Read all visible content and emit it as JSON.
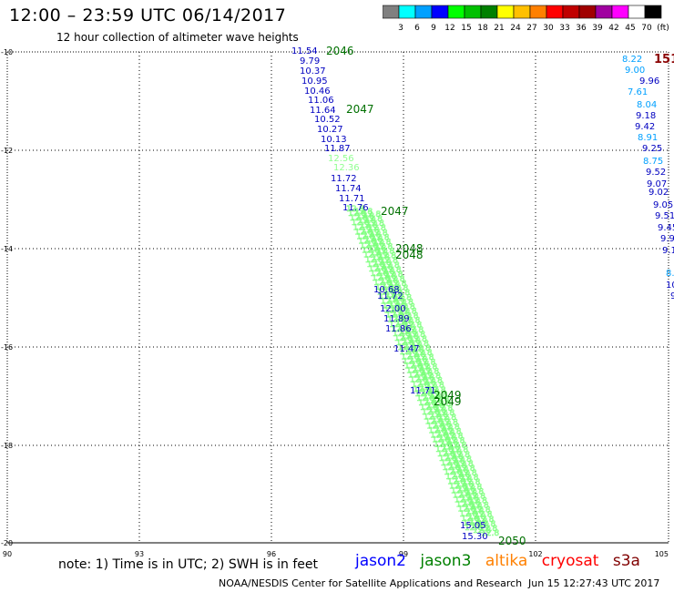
{
  "header": {
    "title": "12:00 – 23:59 UTC 06/14/2017",
    "subtitle": "12 hour collection of altimeter wave heights"
  },
  "legend": {
    "colors": [
      "#808080",
      "#00ffff",
      "#00a0ff",
      "#0000ff",
      "#00ff00",
      "#00c000",
      "#008000",
      "#ffff00",
      "#ffc000",
      "#ff8000",
      "#ff0000",
      "#c00000",
      "#a00000",
      "#a000a0",
      "#ff00ff",
      "#ffffff",
      "#000000"
    ],
    "labels": [
      "3",
      "6",
      "9",
      "12",
      "15",
      "18",
      "21",
      "24",
      "27",
      "30",
      "33",
      "36",
      "39",
      "42",
      "45",
      "70",
      "(ft)"
    ]
  },
  "axes": {
    "lon_ticks": [
      "90",
      "93",
      "96",
      "99",
      "102",
      "105"
    ],
    "lat_ticks": [
      "-10",
      "-12",
      "-14",
      "-16",
      "-18",
      "-20"
    ]
  },
  "labels": {
    "jason2_track": [
      "11.54",
      "9.79",
      "10.37",
      "10.95",
      "10.46",
      "11.06",
      "11.64",
      "10.52",
      "10.27",
      "10.13",
      "11.87",
      "11.72",
      "11.74",
      "11.71",
      "11.76",
      "10.68",
      "11.72",
      "12.00",
      "11.89",
      "11.86",
      "11.47",
      "11.71",
      "15.05",
      "15.30"
    ],
    "jason3_track": [
      "12.56",
      "12.36"
    ],
    "time_labels": [
      "2046",
      "2047",
      "2047",
      "2048",
      "2048",
      "2049",
      "2049",
      "2050"
    ],
    "east_track": [
      "8.22",
      "9.00",
      "9.96",
      "7.61",
      "8.04",
      "9.18",
      "9.42",
      "8.91",
      "9.25",
      "8.75",
      "9.52",
      "9.07",
      "9.02",
      "9.05",
      "9.51",
      "9.45",
      "9.9",
      "9.1",
      "8.",
      "10",
      "9"
    ],
    "east_time": "151"
  },
  "footer": {
    "note": "note: 1) Time is in UTC; 2) SWH is in feet",
    "satellites": [
      {
        "name": "jason2",
        "color": "#0000ff"
      },
      {
        "name": "jason3",
        "color": "#008000"
      },
      {
        "name": "altika",
        "color": "#ff8000"
      },
      {
        "name": "cryosat",
        "color": "#ff0000"
      },
      {
        "name": "s3a",
        "color": "#800000"
      }
    ],
    "credit": "NOAA/NESDIS Center for Satellite Applications and Research",
    "timestamp": "Jun 15 12:27:43 UTC 2017"
  }
}
